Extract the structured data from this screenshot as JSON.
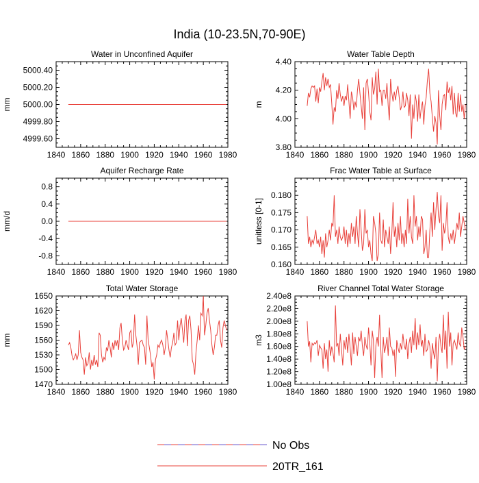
{
  "figure": {
    "title": "India (10-23.5N,70-90E)",
    "legend": [
      {
        "label": "No Obs",
        "color": "#e8403a",
        "dash2": "#6a5acd",
        "style": "dashed"
      },
      {
        "label": "20TR_161",
        "color": "#e8403a",
        "style": "solid"
      }
    ]
  },
  "chart_data": [
    {
      "type": "line",
      "title": "Water in Unconfined Aquifer",
      "ylabel": "mm",
      "xlim": [
        1840,
        1980
      ],
      "ylim": [
        4999.5,
        5000.5
      ],
      "xticks": [
        1840,
        1860,
        1880,
        1900,
        1920,
        1940,
        1960,
        1980
      ],
      "xtick_labels": [
        "1840",
        "1860",
        "1880",
        "1900",
        "1920",
        "1940",
        "1960",
        "1980"
      ],
      "yticks": [
        4999.6,
        4999.8,
        5000.0,
        5000.2,
        5000.4
      ],
      "ytick_labels": [
        "4999.60",
        "4999.80",
        "5000.00",
        "5000.20",
        "5000.40"
      ],
      "series": [
        {
          "name": "20TR_161",
          "color": "#e8403a",
          "constant": 5000.0,
          "x_start": 1850,
          "x_end": 1979
        }
      ]
    },
    {
      "type": "line",
      "title": "Water Table Depth",
      "ylabel": "m",
      "xlim": [
        1840,
        1980
      ],
      "ylim": [
        3.8,
        4.4
      ],
      "xticks": [
        1840,
        1860,
        1880,
        1900,
        1920,
        1940,
        1960,
        1980
      ],
      "xtick_labels": [
        "1840",
        "1860",
        "1880",
        "1900",
        "1920",
        "1940",
        "1960",
        "1980"
      ],
      "yticks": [
        3.8,
        4.0,
        4.2,
        4.4
      ],
      "ytick_labels": [
        "3.80",
        "4.00",
        "4.20",
        "4.40"
      ],
      "series": [
        {
          "name": "20TR_161",
          "color": "#e8403a",
          "x_start": 1850,
          "values": [
            4.09,
            4.18,
            4.15,
            4.21,
            4.23,
            4.22,
            4.23,
            4.12,
            4.21,
            4.11,
            4.22,
            4.19,
            4.26,
            4.32,
            4.2,
            4.29,
            4.23,
            4.28,
            4.22,
            4.24,
            4.11,
            3.96,
            4.08,
            4.05,
            4.2,
            4.14,
            4.25,
            4.17,
            4.12,
            4.16,
            4.09,
            4.16,
            4.13,
            4.24,
            4.12,
            4.0,
            4.19,
            4.15,
            4.06,
            4.12,
            4.08,
            4.2,
            4.28,
            4.18,
            4.09,
            4.0,
            4.22,
            3.92,
            4.25,
            4.28,
            4.18,
            4.05,
            3.99,
            4.29,
            4.17,
            4.21,
            4.33,
            4.1,
            4.35,
            4.19,
            4.2,
            4.09,
            4.2,
            4.2,
            4.14,
            4.25,
            4.09,
            3.99,
            4.28,
            4.18,
            4.12,
            4.19,
            4.13,
            4.2,
            4.23,
            4.15,
            4.06,
            4.09,
            4.19,
            4.08,
            4.09,
            4.18,
            4.13,
            4.02,
            4.17,
            3.86,
            4.1,
            4.0,
            4.17,
            4.12,
            3.98,
            4.17,
            4.0,
            4.08,
            4.12,
            3.96,
            4.09,
            4.15,
            4.27,
            4.35,
            4.18,
            4.12,
            4.01,
            3.91,
            4.02,
            3.97,
            3.82,
            4.2,
            4.02,
            3.92,
            4.1,
            4.16,
            4.17,
            4.06,
            4.26,
            4.18,
            4.22,
            4.13,
            4.23,
            4.03,
            4.18,
            4.04,
            4.01,
            4.18,
            4.05,
            4.17,
            4.05,
            4.1,
            4.0,
            4.1
          ]
        }
      ]
    },
    {
      "type": "line",
      "title": "Aquifer Recharge Rate",
      "ylabel": "mm/d",
      "xlim": [
        1840,
        1980
      ],
      "ylim": [
        -1,
        1
      ],
      "xticks": [
        1840,
        1860,
        1880,
        1900,
        1920,
        1940,
        1960,
        1980
      ],
      "xtick_labels": [
        "1840",
        "1860",
        "1880",
        "1900",
        "1920",
        "1940",
        "1960",
        "1980"
      ],
      "yticks": [
        -0.8,
        -0.4,
        0.0,
        0.4,
        0.8
      ],
      "ytick_labels": [
        "-0.8",
        "-0.4",
        "0.0",
        "0.4",
        "0.8"
      ],
      "series": [
        {
          "name": "20TR_161",
          "color": "#e8403a",
          "constant": 0.0,
          "x_start": 1850,
          "x_end": 1979
        }
      ]
    },
    {
      "type": "line",
      "title": "Frac Water Table at Surface",
      "ylabel": "unitless [0-1]",
      "xlim": [
        1840,
        1980
      ],
      "ylim": [
        0.16,
        0.185
      ],
      "xticks": [
        1840,
        1860,
        1880,
        1900,
        1920,
        1940,
        1960,
        1980
      ],
      "xtick_labels": [
        "1840",
        "1860",
        "1880",
        "1900",
        "1920",
        "1940",
        "1960",
        "1980"
      ],
      "yticks": [
        0.16,
        0.165,
        0.17,
        0.175,
        0.18
      ],
      "ytick_labels": [
        "0.160",
        "0.165",
        "0.170",
        "0.175",
        "0.180"
      ],
      "series": [
        {
          "name": "20TR_161",
          "color": "#e8403a",
          "x_start": 1850,
          "values": [
            0.174,
            0.166,
            0.168,
            0.165,
            0.167,
            0.166,
            0.168,
            0.17,
            0.166,
            0.167,
            0.165,
            0.168,
            0.163,
            0.167,
            0.162,
            0.169,
            0.165,
            0.167,
            0.17,
            0.167,
            0.172,
            0.171,
            0.18,
            0.168,
            0.17,
            0.166,
            0.171,
            0.168,
            0.167,
            0.168,
            0.171,
            0.166,
            0.17,
            0.165,
            0.169,
            0.166,
            0.172,
            0.168,
            0.171,
            0.166,
            0.174,
            0.169,
            0.165,
            0.176,
            0.17,
            0.164,
            0.166,
            0.176,
            0.169,
            0.17,
            0.165,
            0.167,
            0.163,
            0.161,
            0.174,
            0.172,
            0.169,
            0.161,
            0.163,
            0.175,
            0.167,
            0.166,
            0.173,
            0.165,
            0.17,
            0.168,
            0.166,
            0.171,
            0.163,
            0.169,
            0.178,
            0.168,
            0.171,
            0.165,
            0.172,
            0.167,
            0.174,
            0.166,
            0.169,
            0.165,
            0.17,
            0.166,
            0.179,
            0.169,
            0.174,
            0.168,
            0.166,
            0.18,
            0.171,
            0.174,
            0.167,
            0.171,
            0.168,
            0.174,
            0.173,
            0.163,
            0.165,
            0.17,
            0.162,
            0.162,
            0.17,
            0.175,
            0.168,
            0.178,
            0.17,
            0.176,
            0.181,
            0.174,
            0.172,
            0.18,
            0.164,
            0.172,
            0.169,
            0.171,
            0.178,
            0.168,
            0.166,
            0.169,
            0.167,
            0.17,
            0.166,
            0.169,
            0.172,
            0.17,
            0.175,
            0.168,
            0.171,
            0.174,
            0.172,
            0.17
          ]
        }
      ]
    },
    {
      "type": "line",
      "title": "Total Water Storage",
      "ylabel": "mm",
      "xlim": [
        1840,
        1980
      ],
      "ylim": [
        1470,
        1650
      ],
      "xticks": [
        1840,
        1860,
        1880,
        1900,
        1920,
        1940,
        1960,
        1980
      ],
      "xtick_labels": [
        "1840",
        "1860",
        "1880",
        "1900",
        "1920",
        "1940",
        "1960",
        "1980"
      ],
      "yticks": [
        1470,
        1500,
        1530,
        1560,
        1590,
        1620,
        1650
      ],
      "ytick_labels": [
        "1470",
        "1500",
        "1530",
        "1560",
        "1590",
        "1620",
        "1650"
      ],
      "series": [
        {
          "name": "20TR_161",
          "color": "#e8403a",
          "x_start": 1850,
          "values": [
            1550,
            1555,
            1545,
            1528,
            1520,
            1525,
            1532,
            1520,
            1530,
            1580,
            1535,
            1525,
            1520,
            1490,
            1525,
            1508,
            1512,
            1535,
            1500,
            1520,
            1508,
            1530,
            1510,
            1520,
            1505,
            1575,
            1570,
            1530,
            1515,
            1525,
            1520,
            1545,
            1538,
            1560,
            1545,
            1525,
            1555,
            1540,
            1560,
            1548,
            1560,
            1540,
            1585,
            1595,
            1560,
            1540,
            1545,
            1560,
            1550,
            1540,
            1575,
            1580,
            1545,
            1555,
            1612,
            1570,
            1548,
            1510,
            1555,
            1558,
            1560,
            1550,
            1545,
            1510,
            1610,
            1560,
            1545,
            1528,
            1505,
            1515,
            1480,
            1520,
            1530,
            1550,
            1545,
            1555,
            1560,
            1550,
            1530,
            1545,
            1580,
            1560,
            1540,
            1525,
            1545,
            1555,
            1575,
            1550,
            1555,
            1600,
            1560,
            1590,
            1605,
            1580,
            1555,
            1600,
            1612,
            1548,
            1600,
            1610,
            1580,
            1520,
            1510,
            1490,
            1535,
            1560,
            1590,
            1560,
            1615,
            1610,
            1650,
            1570,
            1590,
            1615,
            1625,
            1600,
            1580,
            1550,
            1530,
            1545,
            1570,
            1570,
            1590,
            1600,
            1560,
            1545,
            1585,
            1600,
            1590,
            1580
          ]
        }
      ]
    },
    {
      "type": "line",
      "title": "River Channel Total Water Storage",
      "ylabel": "m3",
      "xlim": [
        1840,
        1980
      ],
      "ylim": [
        100000000.0,
        240000000.0
      ],
      "xticks": [
        1840,
        1860,
        1880,
        1900,
        1920,
        1940,
        1960,
        1980
      ],
      "xtick_labels": [
        "1840",
        "1860",
        "1880",
        "1900",
        "1920",
        "1940",
        "1960",
        "1980"
      ],
      "yticks": [
        100000000.0,
        120000000.0,
        140000000.0,
        160000000.0,
        180000000.0,
        200000000.0,
        220000000.0,
        240000000.0
      ],
      "ytick_labels": [
        "1.00e8",
        "1.20e8",
        "1.40e8",
        "1.60e8",
        "1.80e8",
        "2.00e8",
        "2.20e8",
        "2.40e8"
      ],
      "series": [
        {
          "name": "20TR_161",
          "color": "#e8403a",
          "x_start": 1850,
          "values": [
            200000000.0,
            160000000.0,
            168000000.0,
            135000000.0,
            165000000.0,
            162000000.0,
            166000000.0,
            164000000.0,
            170000000.0,
            145000000.0,
            162000000.0,
            158000000.0,
            155000000.0,
            125000000.0,
            165000000.0,
            140000000.0,
            155000000.0,
            120000000.0,
            170000000.0,
            145000000.0,
            160000000.0,
            150000000.0,
            135000000.0,
            225000000.0,
            160000000.0,
            165000000.0,
            145000000.0,
            180000000.0,
            155000000.0,
            130000000.0,
            170000000.0,
            155000000.0,
            175000000.0,
            150000000.0,
            180000000.0,
            158000000.0,
            130000000.0,
            182000000.0,
            148000000.0,
            175000000.0,
            160000000.0,
            145000000.0,
            175000000.0,
            168000000.0,
            185000000.0,
            160000000.0,
            145000000.0,
            175000000.0,
            162000000.0,
            155000000.0,
            190000000.0,
            165000000.0,
            130000000.0,
            185000000.0,
            170000000.0,
            110000000.0,
            162000000.0,
            175000000.0,
            160000000.0,
            210000000.0,
            155000000.0,
            110000000.0,
            175000000.0,
            150000000.0,
            160000000.0,
            175000000.0,
            145000000.0,
            190000000.0,
            160000000.0,
            158000000.0,
            145000000.0,
            155000000.0,
            112000000.0,
            170000000.0,
            158000000.0,
            150000000.0,
            165000000.0,
            155000000.0,
            180000000.0,
            162000000.0,
            155000000.0,
            172000000.0,
            140000000.0,
            165000000.0,
            175000000.0,
            150000000.0,
            185000000.0,
            162000000.0,
            205000000.0,
            155000000.0,
            182000000.0,
            162000000.0,
            195000000.0,
            160000000.0,
            170000000.0,
            145000000.0,
            180000000.0,
            152000000.0,
            155000000.0,
            170000000.0,
            160000000.0,
            125000000.0,
            165000000.0,
            150000000.0,
            140000000.0,
            175000000.0,
            105000000.0,
            165000000.0,
            180000000.0,
            160000000.0,
            150000000.0,
            210000000.0,
            155000000.0,
            185000000.0,
            125000000.0,
            215000000.0,
            160000000.0,
            182000000.0,
            130000000.0,
            165000000.0,
            170000000.0,
            162000000.0,
            155000000.0,
            182000000.0,
            165000000.0,
            160000000.0,
            190000000.0,
            175000000.0,
            155000000.0,
            160000000.0
          ]
        }
      ]
    }
  ]
}
